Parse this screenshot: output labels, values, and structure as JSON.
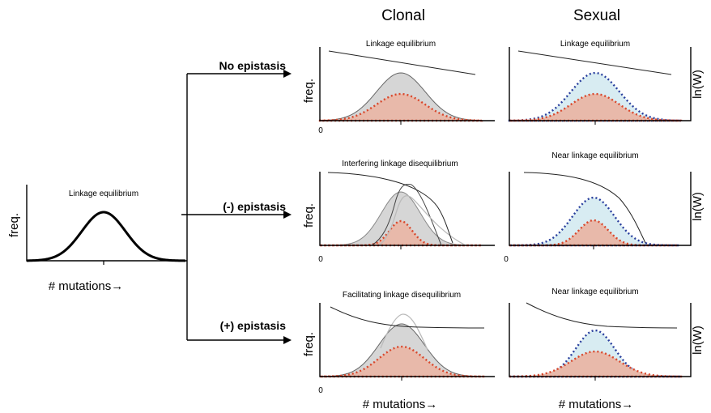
{
  "columns": {
    "clonal": "Clonal",
    "sexual": "Sexual"
  },
  "left_panel": {
    "label": "Linkage equilibrium",
    "ylabel": "freq.",
    "xlabel": "# mutations→"
  },
  "arrows": {
    "no_epistasis": "No epistasis",
    "neg_epistasis": "(-) epistasis",
    "pos_epistasis": "(+) epistasis"
  },
  "rows": [
    {
      "clonal_label": "Linkage equilibrium",
      "sexual_label": "Linkage equilibrium"
    },
    {
      "clonal_label": "Interfering linkage disequilibrium",
      "sexual_label": "Near linkage equilibrium"
    },
    {
      "clonal_label": "Facilitating linkage disequilibrium",
      "sexual_label": "Near linkage equilibrium"
    }
  ],
  "axis": {
    "freq": "freq.",
    "lnw": "ln(W)",
    "zero": "0",
    "xlabel": "# mutations→"
  },
  "colors": {
    "red_dots": "#d9472b",
    "blue_dots": "#2a3f9e",
    "gray_fill": "#d6d6d6",
    "red_fill": "#e8b9aa",
    "blue_fill": "#d8ecf2"
  }
}
